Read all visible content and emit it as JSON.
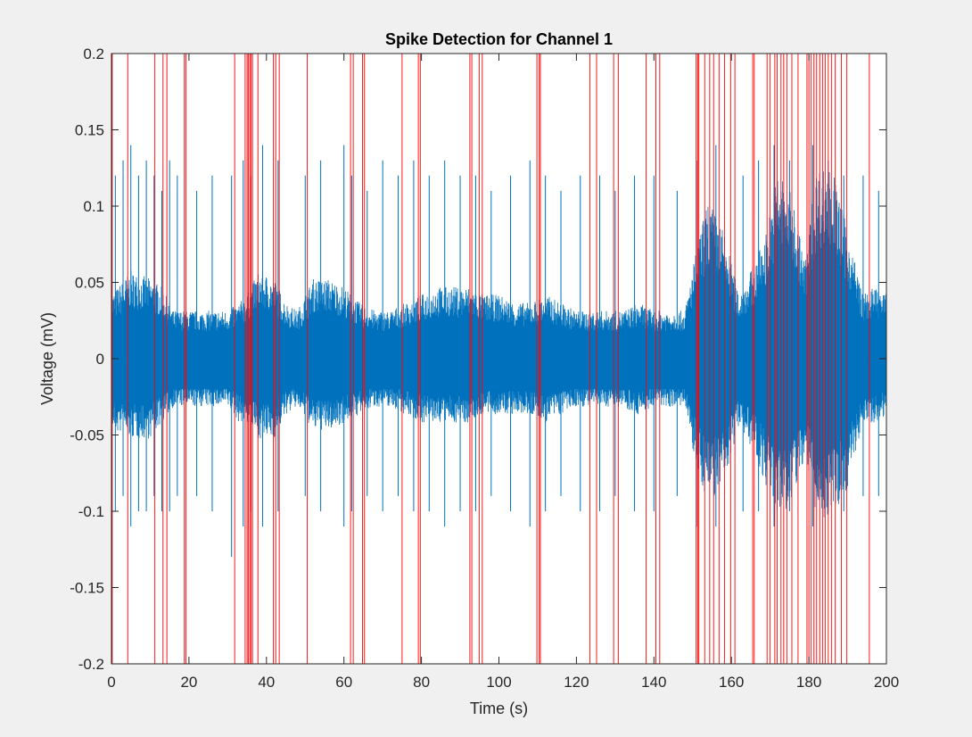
{
  "chart_data": {
    "type": "line",
    "title": "Spike Detection for Channel 1",
    "xlabel": "Time (s)",
    "ylabel": "Voltage (mV)",
    "xlim": [
      0,
      200
    ],
    "ylim": [
      -0.2,
      0.2
    ],
    "grid": false,
    "legend": "none",
    "x_ticks": [
      0,
      20,
      40,
      60,
      80,
      100,
      120,
      140,
      160,
      180,
      200
    ],
    "x_tick_labels": [
      "0",
      "20",
      "40",
      "60",
      "80",
      "100",
      "120",
      "140",
      "160",
      "180",
      "200"
    ],
    "y_ticks": [
      -0.2,
      -0.15,
      -0.1,
      -0.05,
      0,
      0.05,
      0.1,
      0.15,
      0.2
    ],
    "y_tick_labels": [
      "-0.2",
      "-0.15",
      "-0.1",
      "-0.05",
      "0",
      "0.05",
      "0.1",
      "0.15",
      "0.2"
    ],
    "colors": {
      "signal": "#0072bd",
      "spike_markers": "#ff0000",
      "figure_background": "#f0f0f0",
      "axes_background": "#ffffff"
    },
    "signal_envelope": {
      "note_values": "approximate upper / lower extent of the voltage trace over time (mV)",
      "t": [
        0,
        5,
        10,
        13,
        16,
        19,
        22,
        26,
        30,
        33,
        35,
        38,
        42,
        45,
        48,
        52,
        56,
        60,
        64,
        68,
        72,
        76,
        80,
        84,
        88,
        92,
        96,
        100,
        104,
        108,
        112,
        116,
        120,
        124,
        128,
        132,
        136,
        140,
        144,
        148,
        151,
        154,
        158,
        162,
        166,
        169,
        172,
        176,
        179,
        182,
        186,
        190,
        194,
        197,
        200
      ],
      "upper": [
        0.04,
        0.055,
        0.05,
        0.045,
        0.03,
        0.03,
        0.03,
        0.03,
        0.03,
        0.035,
        0.04,
        0.055,
        0.05,
        0.035,
        0.03,
        0.05,
        0.05,
        0.045,
        0.035,
        0.03,
        0.03,
        0.035,
        0.04,
        0.045,
        0.045,
        0.045,
        0.04,
        0.04,
        0.035,
        0.035,
        0.04,
        0.035,
        0.03,
        0.03,
        0.03,
        0.03,
        0.035,
        0.03,
        0.03,
        0.03,
        0.07,
        0.1,
        0.08,
        0.04,
        0.06,
        0.08,
        0.12,
        0.1,
        0.06,
        0.12,
        0.12,
        0.08,
        0.04,
        0.045,
        0.04
      ],
      "lower": [
        -0.045,
        -0.05,
        -0.05,
        -0.04,
        -0.03,
        -0.03,
        -0.03,
        -0.03,
        -0.03,
        -0.04,
        -0.04,
        -0.05,
        -0.05,
        -0.035,
        -0.03,
        -0.045,
        -0.045,
        -0.04,
        -0.035,
        -0.03,
        -0.03,
        -0.035,
        -0.04,
        -0.04,
        -0.04,
        -0.04,
        -0.035,
        -0.035,
        -0.035,
        -0.035,
        -0.04,
        -0.035,
        -0.03,
        -0.03,
        -0.03,
        -0.03,
        -0.035,
        -0.03,
        -0.03,
        -0.03,
        -0.07,
        -0.09,
        -0.08,
        -0.04,
        -0.06,
        -0.08,
        -0.1,
        -0.09,
        -0.06,
        -0.1,
        -0.1,
        -0.08,
        -0.04,
        -0.04,
        -0.035
      ]
    },
    "spikes": {
      "note_values": "approximate peak amplitudes (mV) of isolated excursions visible in the trace",
      "t": [
        1,
        3,
        5,
        7,
        9,
        11,
        13,
        15,
        17,
        22,
        26,
        31,
        34,
        36,
        39,
        43,
        50,
        54,
        60,
        62,
        66,
        70,
        74,
        78,
        82,
        86,
        90,
        94,
        98,
        103,
        108,
        112,
        116,
        121,
        126,
        130,
        135,
        140,
        146,
        151,
        156,
        163,
        167,
        171,
        175,
        181,
        185,
        189,
        194,
        198
      ],
      "peak": [
        0.12,
        0.13,
        0.14,
        0.12,
        0.13,
        0.12,
        0.11,
        0.13,
        0.12,
        0.11,
        0.12,
        0.12,
        0.13,
        0.12,
        0.14,
        0.13,
        0.12,
        0.13,
        0.14,
        0.12,
        0.11,
        0.13,
        0.12,
        0.13,
        0.12,
        0.13,
        0.12,
        0.12,
        0.11,
        0.12,
        0.13,
        0.12,
        0.11,
        0.12,
        0.12,
        0.11,
        0.12,
        0.12,
        0.11,
        0.13,
        0.14,
        0.12,
        0.13,
        0.14,
        0.13,
        0.14,
        0.13,
        0.12,
        0.12,
        0.11
      ],
      "trough": [
        -0.1,
        -0.09,
        -0.11,
        -0.1,
        -0.1,
        -0.09,
        -0.1,
        -0.1,
        -0.09,
        -0.09,
        -0.1,
        -0.13,
        -0.11,
        -0.1,
        -0.11,
        -0.1,
        -0.09,
        -0.1,
        -0.11,
        -0.1,
        -0.09,
        -0.1,
        -0.09,
        -0.1,
        -0.1,
        -0.11,
        -0.1,
        -0.1,
        -0.09,
        -0.1,
        -0.11,
        -0.1,
        -0.09,
        -0.1,
        -0.1,
        -0.09,
        -0.1,
        -0.1,
        -0.09,
        -0.11,
        -0.11,
        -0.1,
        -0.1,
        -0.11,
        -0.1,
        -0.11,
        -0.1,
        -0.1,
        -0.09,
        -0.09
      ]
    },
    "spike_markers": {
      "type": "vertical_lines",
      "t": [
        0.2,
        4.2,
        11.2,
        13.3,
        14.3,
        18.8,
        19.2,
        31.8,
        34.5,
        35.0,
        35.3,
        35.7,
        36.0,
        36.4,
        37.8,
        41.8,
        42.4,
        43.3,
        50.5,
        61.7,
        62.4,
        64.8,
        65.3,
        75.0,
        79.2,
        79.7,
        92.5,
        93.0,
        94.9,
        95.7,
        109.8,
        110.4,
        110.7,
        123.5,
        125.2,
        129.6,
        130.8,
        138.0,
        140.5,
        141.5,
        150.9,
        151.3,
        151.6,
        153.1,
        154.4,
        155.4,
        156.8,
        158.2,
        159.8,
        160.9,
        165.5,
        165.9,
        169.2,
        170.0,
        171.2,
        171.8,
        172.8,
        173.5,
        174.3,
        175.6,
        177.2,
        179.5,
        180.0,
        180.6,
        181.3,
        182.0,
        182.8,
        183.5,
        184.2,
        185.0,
        185.8,
        186.8,
        188.4,
        189.8,
        195.6
      ]
    }
  }
}
